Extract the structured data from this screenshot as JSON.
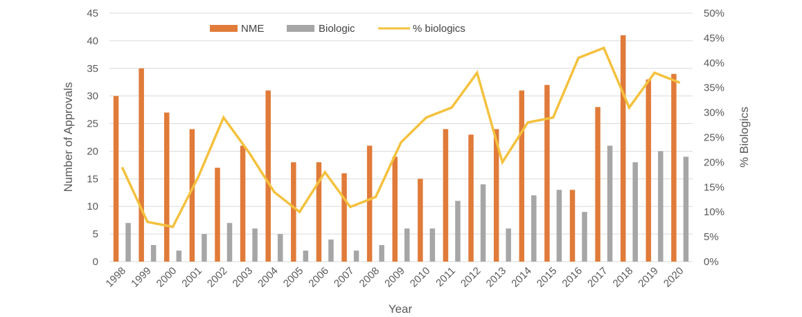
{
  "chart_data": {
    "type": "bar",
    "categories": [
      "1998",
      "1999",
      "2000",
      "2001",
      "2002",
      "2003",
      "2004",
      "2005",
      "2006",
      "2007",
      "2008",
      "2009",
      "2010",
      "2011",
      "2012",
      "2013",
      "2014",
      "2015",
      "2016",
      "2017",
      "2018",
      "2019",
      "2020"
    ],
    "series": [
      {
        "name": "NME",
        "type": "bar",
        "axis": "left",
        "color": "#e07b39",
        "values": [
          30,
          35,
          27,
          24,
          17,
          21,
          31,
          18,
          18,
          16,
          21,
          19,
          15,
          24,
          23,
          24,
          31,
          32,
          13,
          28,
          41,
          33,
          34
        ]
      },
      {
        "name": "Biologic",
        "type": "bar",
        "axis": "left",
        "color": "#a6a6a6",
        "values": [
          7,
          3,
          2,
          5,
          7,
          6,
          5,
          2,
          4,
          2,
          3,
          6,
          6,
          11,
          14,
          6,
          12,
          13,
          9,
          21,
          18,
          20,
          19
        ]
      },
      {
        "name": "% biologics",
        "type": "line",
        "axis": "right",
        "color": "#f4c13d",
        "values": [
          19,
          8,
          7,
          17,
          29,
          22,
          14,
          10,
          18,
          11,
          13,
          24,
          29,
          31,
          38,
          20,
          28,
          29,
          41,
          43,
          31,
          38,
          36
        ]
      }
    ],
    "xlabel": "Year",
    "ylabel": "Number of Approvals",
    "y2label": "% Biologics",
    "ylim": [
      0,
      45
    ],
    "yticks": [
      "0",
      "5",
      "10",
      "15",
      "20",
      "25",
      "30",
      "35",
      "40",
      "45"
    ],
    "y2lim": [
      0,
      50
    ],
    "y2ticks": [
      "0%",
      "5%",
      "10%",
      "15%",
      "20%",
      "25%",
      "30%",
      "35%",
      "40%",
      "45%",
      "50%"
    ],
    "grid": true,
    "legend": "top"
  }
}
